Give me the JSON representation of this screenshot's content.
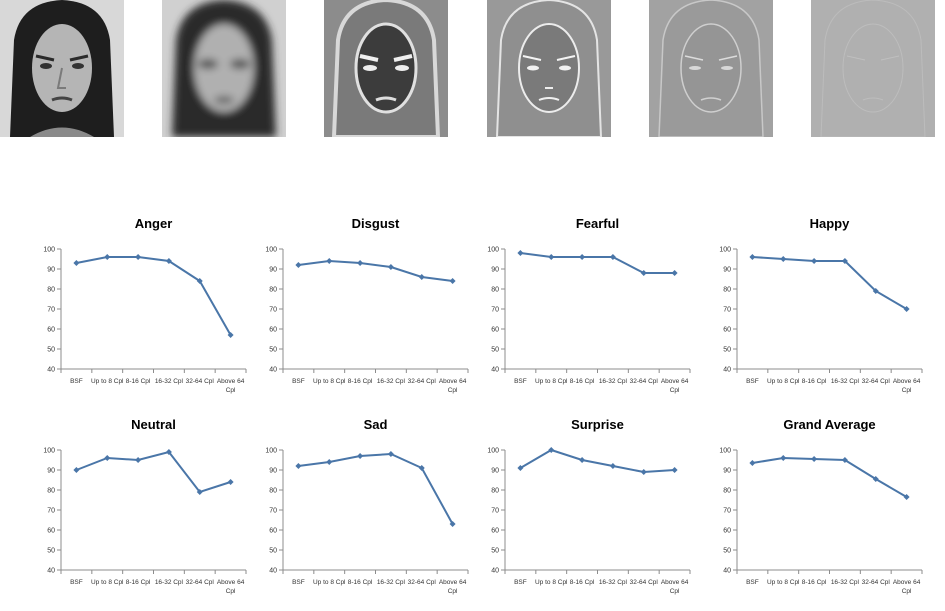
{
  "faces": [
    {
      "name": "face-original",
      "filter": "broadband"
    },
    {
      "name": "face-low-pass",
      "filter": "low"
    },
    {
      "name": "face-filtered-1",
      "filter": "band1"
    },
    {
      "name": "face-filtered-2",
      "filter": "band2"
    },
    {
      "name": "face-filtered-3",
      "filter": "band3"
    },
    {
      "name": "face-filtered-4",
      "filter": "band4"
    }
  ],
  "chart_data": [
    {
      "type": "line",
      "title": "Anger",
      "categories": [
        "BSF",
        "Up to 8 Cpl",
        "8-16 Cpl",
        "16-32 Cpl",
        "32-64 Cpl",
        "Above 64 Cpl"
      ],
      "series": [
        {
          "values": [
            93,
            96,
            96,
            94,
            84,
            57
          ]
        }
      ],
      "ylim": [
        40,
        100
      ],
      "yticks": [
        40,
        50,
        60,
        70,
        80,
        90,
        100
      ],
      "color": "#4a76a8"
    },
    {
      "type": "line",
      "title": "Disgust",
      "categories": [
        "BSF",
        "Up to 8 Cpl",
        "8-16 Cpl",
        "16-32 Cpl",
        "32-64 Cpl",
        "Above 64 Cpl"
      ],
      "series": [
        {
          "values": [
            92,
            94,
            93,
            91,
            86,
            84
          ]
        }
      ],
      "ylim": [
        40,
        100
      ],
      "yticks": [
        40,
        50,
        60,
        70,
        80,
        90,
        100
      ],
      "color": "#4a76a8"
    },
    {
      "type": "line",
      "title": "Fearful",
      "categories": [
        "BSF",
        "Up to 8 Cpl",
        "8-16 Cpl",
        "16-32 Cpl",
        "32-64 Cpl",
        "Above 64 Cpl"
      ],
      "series": [
        {
          "values": [
            98,
            96,
            96,
            96,
            88,
            88
          ]
        }
      ],
      "ylim": [
        40,
        100
      ],
      "yticks": [
        40,
        50,
        60,
        70,
        80,
        90,
        100
      ],
      "color": "#4a76a8"
    },
    {
      "type": "line",
      "title": "Happy",
      "categories": [
        "BSF",
        "Up to 8 Cpl",
        "8-16 Cpl",
        "16-32 Cpl",
        "32-64 Cpl",
        "Above 64 Cpl"
      ],
      "series": [
        {
          "values": [
            96,
            95,
            94,
            94,
            79,
            70
          ]
        }
      ],
      "ylim": [
        40,
        100
      ],
      "yticks": [
        40,
        50,
        60,
        70,
        80,
        90,
        100
      ],
      "color": "#4a76a8"
    },
    {
      "type": "line",
      "title": "Neutral",
      "categories": [
        "BSF",
        "Up to 8 Cpl",
        "8-16 Cpl",
        "16-32 Cpl",
        "32-64 Cpl",
        "Above 64 Cpl"
      ],
      "series": [
        {
          "values": [
            90,
            96,
            95,
            99,
            79,
            84
          ]
        }
      ],
      "ylim": [
        40,
        100
      ],
      "yticks": [
        40,
        50,
        60,
        70,
        80,
        90,
        100
      ],
      "color": "#4a76a8"
    },
    {
      "type": "line",
      "title": "Sad",
      "categories": [
        "BSF",
        "Up to 8 Cpl",
        "8-16 Cpl",
        "16-32 Cpl",
        "32-64 Cpl",
        "Above 64 Cpl"
      ],
      "series": [
        {
          "values": [
            92,
            94,
            97,
            98,
            91,
            63
          ]
        }
      ],
      "ylim": [
        40,
        100
      ],
      "yticks": [
        40,
        50,
        60,
        70,
        80,
        90,
        100
      ],
      "color": "#4a76a8"
    },
    {
      "type": "line",
      "title": "Surprise",
      "categories": [
        "BSF",
        "Up to 8 Cpl",
        "8-16 Cpl",
        "16-32 Cpl",
        "32-64 Cpl",
        "Above 64 Cpl"
      ],
      "series": [
        {
          "values": [
            91,
            100,
            95,
            92,
            89,
            90
          ]
        }
      ],
      "ylim": [
        40,
        100
      ],
      "yticks": [
        40,
        50,
        60,
        70,
        80,
        90,
        100
      ],
      "color": "#4a76a8"
    },
    {
      "type": "line",
      "title": "Grand Average",
      "categories": [
        "BSF",
        "Up to 8 Cpl",
        "8-16 Cpl",
        "16-32 Cpl",
        "32-64 Cpl",
        "Above 64 Cpl"
      ],
      "series": [
        {
          "values": [
            93.5,
            96,
            95.5,
            95,
            85.5,
            76.5
          ]
        }
      ],
      "ylim": [
        40,
        100
      ],
      "yticks": [
        40,
        50,
        60,
        70,
        80,
        90,
        100
      ],
      "color": "#4a76a8"
    }
  ]
}
